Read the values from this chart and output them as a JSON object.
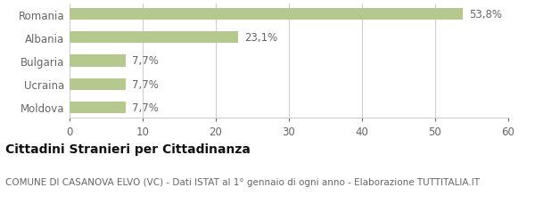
{
  "categories": [
    "Moldova",
    "Ucraina",
    "Bulgaria",
    "Albania",
    "Romania"
  ],
  "values": [
    7.7,
    7.7,
    7.7,
    23.1,
    53.8
  ],
  "labels": [
    "7,7%",
    "7,7%",
    "7,7%",
    "23,1%",
    "53,8%"
  ],
  "bar_color": "#b5c98e",
  "xlim": [
    0,
    60
  ],
  "xticks": [
    0,
    10,
    20,
    30,
    40,
    50,
    60
  ],
  "title_bold": "Cittadini Stranieri per Cittadinanza",
  "subtitle": "COMUNE DI CASANOVA ELVO (VC) - Dati ISTAT al 1° gennaio di ogni anno - Elaborazione TUTTITALIA.IT",
  "title_fontsize": 10,
  "subtitle_fontsize": 7.5,
  "label_fontsize": 8.5,
  "tick_fontsize": 8.5,
  "background_color": "#ffffff",
  "grid_color": "#cccccc",
  "text_color": "#666666",
  "title_color": "#111111",
  "bar_height": 0.5
}
